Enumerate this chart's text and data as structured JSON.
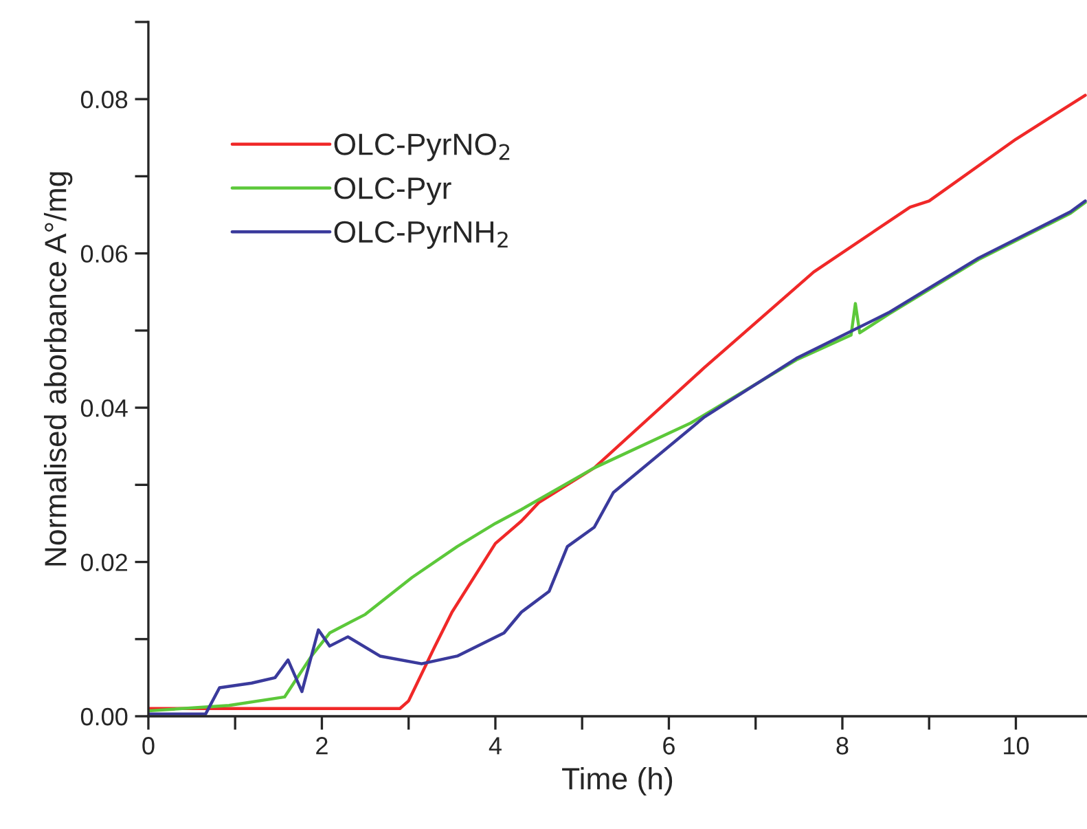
{
  "chart_data": {
    "type": "line",
    "xlabel": "Time (h)",
    "ylabel": "Normalised aborbance A°/mg",
    "xlim": [
      0,
      10.82
    ],
    "ylim": [
      0,
      0.09
    ],
    "xticks": [
      0,
      {
        "value": 1,
        "label": null
      },
      2,
      {
        "value": 3,
        "label": null
      },
      4,
      {
        "value": 5,
        "label": null
      },
      6,
      {
        "value": 7,
        "label": null
      },
      8,
      {
        "value": 9,
        "label": null
      },
      10
    ],
    "yticks": [
      {
        "value": 0,
        "label": "0.00"
      },
      {
        "value": 0.01,
        "label": null
      },
      {
        "value": 0.02,
        "label": "0.02"
      },
      {
        "value": 0.03,
        "label": null
      },
      {
        "value": 0.04,
        "label": "0.04"
      },
      {
        "value": 0.05,
        "label": null
      },
      {
        "value": 0.06,
        "label": "0.06"
      },
      {
        "value": 0.07,
        "label": null
      },
      {
        "value": 0.08,
        "label": "0.08"
      },
      {
        "value": 0.09,
        "label": null
      }
    ],
    "grid": false,
    "legend": "top left",
    "marker": "none",
    "line_style": "solid",
    "series": [
      {
        "name": "OLC-PyrNO$_{2}$",
        "color": "#f02828",
        "x": [
          0,
          1,
          2,
          2.9,
          3.0,
          3.3,
          3.5,
          4.0,
          4.3,
          4.5,
          5.14,
          6.0,
          6.41,
          7.67,
          8.78,
          9.0,
          10.0,
          10.8
        ],
        "values": [
          0.001,
          0.001,
          0.001,
          0.001,
          0.002,
          0.009,
          0.0135,
          0.0224,
          0.0253,
          0.0277,
          0.0322,
          0.041,
          0.0452,
          0.0576,
          0.066,
          0.0668,
          0.0748,
          0.0805
        ]
      },
      {
        "name": "OLC-Pyr",
        "color": "#5cc83a",
        "x": [
          0,
          0.93,
          1.57,
          1.88,
          2.09,
          2.5,
          3.04,
          3.56,
          4.0,
          4.3,
          5.14,
          6.25,
          7.47,
          8.1,
          8.15,
          8.2,
          8.53,
          9.57,
          10.63,
          10.8
        ],
        "values": [
          0.0007,
          0.0014,
          0.0025,
          0.0078,
          0.0108,
          0.0132,
          0.018,
          0.022,
          0.025,
          0.0268,
          0.0322,
          0.038,
          0.0462,
          0.0494,
          0.0535,
          0.0497,
          0.0521,
          0.0592,
          0.0652,
          0.0666
        ]
      },
      {
        "name": "OLC-PyrNH$_{2}$",
        "color": "#3a3a9c",
        "x": [
          0,
          0.66,
          0.82,
          1.19,
          1.46,
          1.61,
          1.77,
          1.96,
          2.09,
          2.3,
          2.67,
          3.15,
          3.56,
          4.1,
          4.3,
          4.62,
          4.83,
          5.14,
          5.36,
          6.41,
          7.47,
          8.53,
          9.57,
          10.63,
          10.8
        ],
        "values": [
          0.0003,
          0.0003,
          0.0037,
          0.0043,
          0.005,
          0.0073,
          0.0032,
          0.0112,
          0.0091,
          0.0103,
          0.0078,
          0.0068,
          0.0078,
          0.0108,
          0.0135,
          0.0162,
          0.022,
          0.0245,
          0.029,
          0.0388,
          0.0464,
          0.0523,
          0.0594,
          0.0654,
          0.0668
        ]
      }
    ]
  }
}
